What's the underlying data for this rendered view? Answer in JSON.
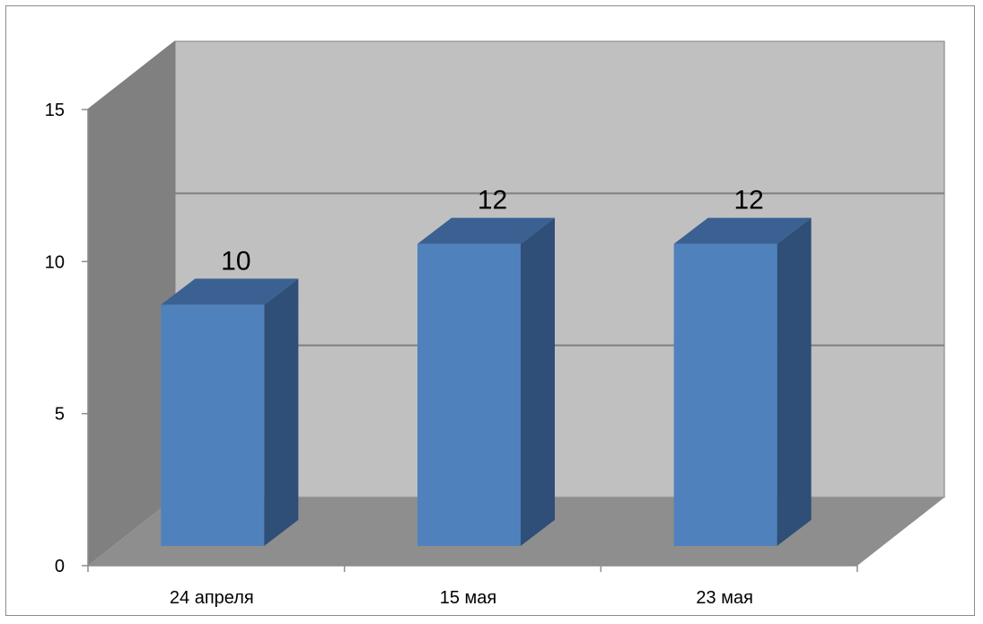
{
  "chart_data": {
    "type": "bar",
    "categories": [
      "24 апреля",
      "15 мая",
      "23 мая"
    ],
    "values": [
      10,
      12,
      12
    ],
    "data_labels": [
      "10",
      "12",
      "12"
    ],
    "ylim": [
      0,
      15
    ],
    "yticks": [
      0,
      5,
      10,
      15
    ],
    "ytick_labels": [
      "0",
      "5",
      "10",
      "15"
    ],
    "grid": true,
    "legend": "none",
    "colors": {
      "bar_front": "#4f81bd",
      "bar_top": "#3a6191",
      "bar_side": "#2f4e78",
      "back_wall": "#c0c0c0",
      "side_wall": "#808080",
      "floor": "#8e8e8e",
      "gridline": "#7f7f7f"
    }
  }
}
